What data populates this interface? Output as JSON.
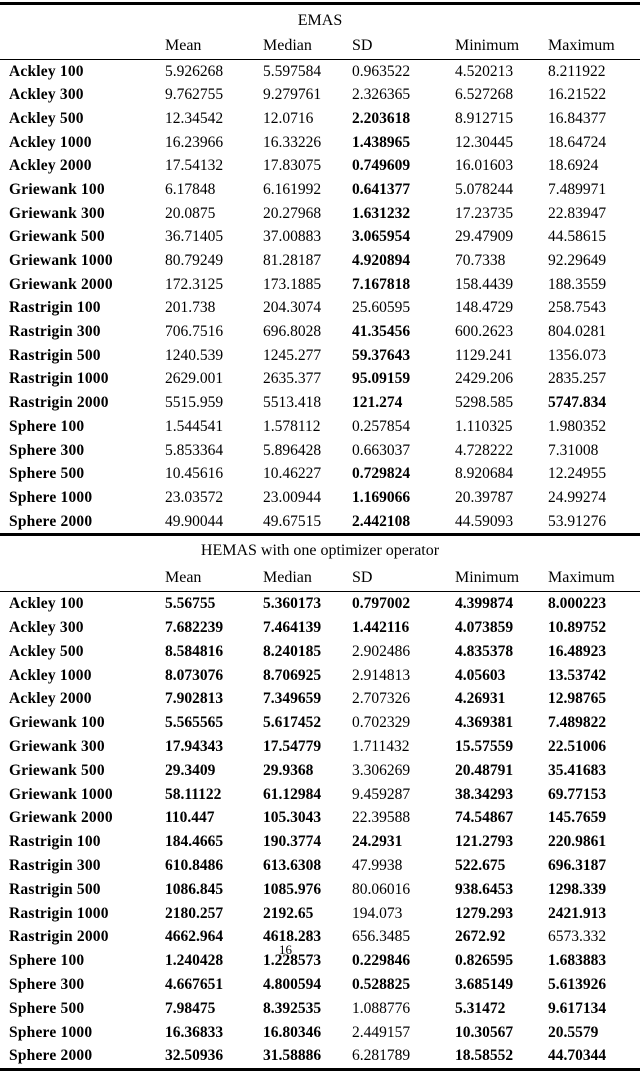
{
  "page_number": "16",
  "colors": {
    "text": "#000000",
    "background": "#ffffff",
    "rule": "#000000"
  },
  "columns": [
    "Mean",
    "Median",
    "SD",
    "Minimum",
    "Maximum"
  ],
  "sections": [
    {
      "title": "EMAS",
      "rows": [
        {
          "label": "Ackley 100",
          "values": [
            "5.926268",
            "5.597584",
            "0.963522",
            "4.520213",
            "8.211922"
          ],
          "bold": [
            0,
            0,
            0,
            0,
            0
          ]
        },
        {
          "label": "Ackley 300",
          "values": [
            "9.762755",
            "9.279761",
            "2.326365",
            "6.527268",
            "16.21522"
          ],
          "bold": [
            0,
            0,
            0,
            0,
            0
          ]
        },
        {
          "label": "Ackley 500",
          "values": [
            "12.34542",
            "12.0716",
            "2.203618",
            "8.912715",
            "16.84377"
          ],
          "bold": [
            0,
            0,
            1,
            0,
            0
          ]
        },
        {
          "label": "Ackley 1000",
          "values": [
            "16.23966",
            "16.33226",
            "1.438965",
            "12.30445",
            "18.64724"
          ],
          "bold": [
            0,
            0,
            1,
            0,
            0
          ]
        },
        {
          "label": "Ackley 2000",
          "values": [
            "17.54132",
            "17.83075",
            "0.749609",
            "16.01603",
            "18.6924"
          ],
          "bold": [
            0,
            0,
            1,
            0,
            0
          ]
        },
        {
          "label": "Griewank 100",
          "values": [
            "6.17848",
            "6.161992",
            "0.641377",
            "5.078244",
            "7.489971"
          ],
          "bold": [
            0,
            0,
            1,
            0,
            0
          ]
        },
        {
          "label": "Griewank 300",
          "values": [
            "20.0875",
            "20.27968",
            "1.631232",
            "17.23735",
            "22.83947"
          ],
          "bold": [
            0,
            0,
            1,
            0,
            0
          ]
        },
        {
          "label": "Griewank 500",
          "values": [
            "36.71405",
            "37.00883",
            "3.065954",
            "29.47909",
            "44.58615"
          ],
          "bold": [
            0,
            0,
            1,
            0,
            0
          ]
        },
        {
          "label": "Griewank 1000",
          "values": [
            "80.79249",
            "81.28187",
            "4.920894",
            "70.7338",
            "92.29649"
          ],
          "bold": [
            0,
            0,
            1,
            0,
            0
          ]
        },
        {
          "label": "Griewank 2000",
          "values": [
            "172.3125",
            "173.1885",
            "7.167818",
            "158.4439",
            "188.3559"
          ],
          "bold": [
            0,
            0,
            1,
            0,
            0
          ]
        },
        {
          "label": "Rastrigin 100",
          "values": [
            "201.738",
            "204.3074",
            "25.60595",
            "148.4729",
            "258.7543"
          ],
          "bold": [
            0,
            0,
            0,
            0,
            0
          ]
        },
        {
          "label": "Rastrigin 300",
          "values": [
            "706.7516",
            "696.8028",
            "41.35456",
            "600.2623",
            "804.0281"
          ],
          "bold": [
            0,
            0,
            1,
            0,
            0
          ]
        },
        {
          "label": "Rastrigin 500",
          "values": [
            "1240.539",
            "1245.277",
            "59.37643",
            "1129.241",
            "1356.073"
          ],
          "bold": [
            0,
            0,
            1,
            0,
            0
          ]
        },
        {
          "label": "Rastrigin 1000",
          "values": [
            "2629.001",
            "2635.377",
            "95.09159",
            "2429.206",
            "2835.257"
          ],
          "bold": [
            0,
            0,
            1,
            0,
            0
          ]
        },
        {
          "label": "Rastrigin 2000",
          "values": [
            "5515.959",
            "5513.418",
            "121.274",
            "5298.585",
            "5747.834"
          ],
          "bold": [
            0,
            0,
            1,
            0,
            1
          ]
        },
        {
          "label": "Sphere 100",
          "values": [
            "1.544541",
            "1.578112",
            "0.257854",
            "1.110325",
            "1.980352"
          ],
          "bold": [
            0,
            0,
            0,
            0,
            0
          ]
        },
        {
          "label": "Sphere 300",
          "values": [
            "5.853364",
            "5.896428",
            "0.663037",
            "4.728222",
            "7.31008"
          ],
          "bold": [
            0,
            0,
            0,
            0,
            0
          ]
        },
        {
          "label": "Sphere 500",
          "values": [
            "10.45616",
            "10.46227",
            "0.729824",
            "8.920684",
            "12.24955"
          ],
          "bold": [
            0,
            0,
            1,
            0,
            0
          ]
        },
        {
          "label": "Sphere 1000",
          "values": [
            "23.03572",
            "23.00944",
            "1.169066",
            "20.39787",
            "24.99274"
          ],
          "bold": [
            0,
            0,
            1,
            0,
            0
          ]
        },
        {
          "label": "Sphere 2000",
          "values": [
            "49.90044",
            "49.67515",
            "2.442108",
            "44.59093",
            "53.91276"
          ],
          "bold": [
            0,
            0,
            1,
            0,
            0
          ]
        }
      ]
    },
    {
      "title": "HEMAS with one optimizer operator",
      "rows": [
        {
          "label": "Ackley 100",
          "values": [
            "5.56755",
            "5.360173",
            "0.797002",
            "4.399874",
            "8.000223"
          ],
          "bold": [
            1,
            1,
            1,
            1,
            1
          ]
        },
        {
          "label": "Ackley 300",
          "values": [
            "7.682239",
            "7.464139",
            "1.442116",
            "4.073859",
            "10.89752"
          ],
          "bold": [
            1,
            1,
            1,
            1,
            1
          ]
        },
        {
          "label": "Ackley 500",
          "values": [
            "8.584816",
            "8.240185",
            "2.902486",
            "4.835378",
            "16.48923"
          ],
          "bold": [
            1,
            1,
            0,
            1,
            1
          ]
        },
        {
          "label": "Ackley 1000",
          "values": [
            "8.073076",
            "8.706925",
            "2.914813",
            "4.05603",
            "13.53742"
          ],
          "bold": [
            1,
            1,
            0,
            1,
            1
          ]
        },
        {
          "label": "Ackley 2000",
          "values": [
            "7.902813",
            "7.349659",
            "2.707326",
            "4.26931",
            "12.98765"
          ],
          "bold": [
            1,
            1,
            0,
            1,
            1
          ]
        },
        {
          "label": "Griewank 100",
          "values": [
            "5.565565",
            "5.617452",
            "0.702329",
            "4.369381",
            "7.489822"
          ],
          "bold": [
            1,
            1,
            0,
            1,
            1
          ]
        },
        {
          "label": "Griewank 300",
          "values": [
            "17.94343",
            "17.54779",
            "1.711432",
            "15.57559",
            "22.51006"
          ],
          "bold": [
            1,
            1,
            0,
            1,
            1
          ]
        },
        {
          "label": "Griewank 500",
          "values": [
            "29.3409",
            "29.9368",
            "3.306269",
            "20.48791",
            "35.41683"
          ],
          "bold": [
            1,
            1,
            0,
            1,
            1
          ]
        },
        {
          "label": "Griewank 1000",
          "values": [
            "58.11122",
            "61.12984",
            "9.459287",
            "38.34293",
            "69.77153"
          ],
          "bold": [
            1,
            1,
            0,
            1,
            1
          ]
        },
        {
          "label": "Griewank 2000",
          "values": [
            "110.447",
            "105.3043",
            "22.39588",
            "74.54867",
            "145.7659"
          ],
          "bold": [
            1,
            1,
            0,
            1,
            1
          ]
        },
        {
          "label": "Rastrigin 100",
          "values": [
            "184.4665",
            "190.3774",
            "24.2931",
            "121.2793",
            "220.9861"
          ],
          "bold": [
            1,
            1,
            1,
            1,
            1
          ]
        },
        {
          "label": "Rastrigin 300",
          "values": [
            "610.8486",
            "613.6308",
            "47.9938",
            "522.675",
            "696.3187"
          ],
          "bold": [
            1,
            1,
            0,
            1,
            1
          ]
        },
        {
          "label": "Rastrigin 500",
          "values": [
            "1086.845",
            "1085.976",
            "80.06016",
            "938.6453",
            "1298.339"
          ],
          "bold": [
            1,
            1,
            0,
            1,
            1
          ]
        },
        {
          "label": "Rastrigin 1000",
          "values": [
            "2180.257",
            "2192.65",
            "194.073",
            "1279.293",
            "2421.913"
          ],
          "bold": [
            1,
            1,
            0,
            1,
            1
          ]
        },
        {
          "label": "Rastrigin 2000",
          "values": [
            "4662.964",
            "4618.283",
            "656.3485",
            "2672.92",
            "6573.332"
          ],
          "bold": [
            1,
            1,
            0,
            1,
            0
          ]
        },
        {
          "label": "Sphere 100",
          "values": [
            "1.240428",
            "1.228573",
            "0.229846",
            "0.826595",
            "1.683883"
          ],
          "bold": [
            1,
            1,
            1,
            1,
            1
          ]
        },
        {
          "label": "Sphere 300",
          "values": [
            "4.667651",
            "4.800594",
            "0.528825",
            "3.685149",
            "5.613926"
          ],
          "bold": [
            1,
            1,
            1,
            1,
            1
          ]
        },
        {
          "label": "Sphere 500",
          "values": [
            "7.98475",
            "8.392535",
            "1.088776",
            "5.31472",
            "9.617134"
          ],
          "bold": [
            1,
            1,
            0,
            1,
            1
          ]
        },
        {
          "label": "Sphere 1000",
          "values": [
            "16.36833",
            "16.80346",
            "2.449157",
            "10.30567",
            "20.5579"
          ],
          "bold": [
            1,
            1,
            0,
            1,
            1
          ]
        },
        {
          "label": "Sphere 2000",
          "values": [
            "32.50936",
            "31.58886",
            "6.281789",
            "18.58552",
            "44.70344"
          ],
          "bold": [
            1,
            1,
            0,
            1,
            1
          ]
        }
      ]
    }
  ]
}
